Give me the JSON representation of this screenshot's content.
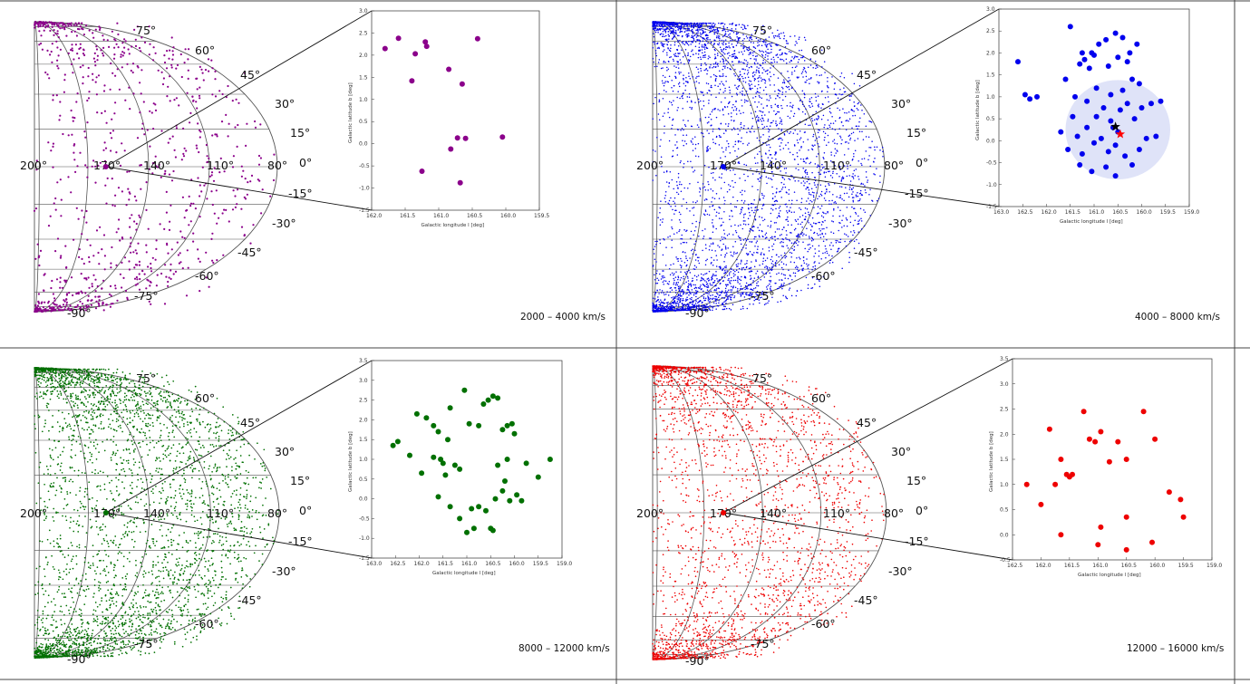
{
  "ticks": {
    "lat_labels": [
      "75°",
      "60°",
      "45°",
      "30°",
      "15°",
      "0°",
      "-15°",
      "-30°",
      "-45°",
      "-60°",
      "-75°",
      "-90°"
    ],
    "lon_labels": [
      "200°",
      "170°",
      "140°",
      "110°",
      "80°"
    ]
  },
  "panels": [
    {
      "velocity_label": "2000 – 4000 km/s",
      "color": "#8b008b",
      "inset_xlabel": "Galactic longitude l [deg]",
      "inset_ylabel": "Galactic latitude b [deg]",
      "chart_data": {
        "type": "scatter",
        "title": "",
        "xlabel": "Galactic longitude l [deg]",
        "ylabel": "Galactic latitude b [deg]",
        "xlim": [
          162.0,
          159.5
        ],
        "ylim": [
          -1.5,
          3.0
        ],
        "xticks": [
          "162.0",
          "161.5",
          "161.0",
          "160.5",
          "160.0",
          "159.5"
        ],
        "yticks": [
          "3.0",
          "2.5",
          "2.0",
          "1.5",
          "1.0",
          "0.5",
          "0.0",
          "-0.5",
          "-1.0",
          "-1.5"
        ],
        "points": [
          [
            161.8,
            2.15
          ],
          [
            161.6,
            2.38
          ],
          [
            161.4,
            1.42
          ],
          [
            161.35,
            2.03
          ],
          [
            161.2,
            2.3
          ],
          [
            161.18,
            2.2
          ],
          [
            160.85,
            1.68
          ],
          [
            160.65,
            1.35
          ],
          [
            160.42,
            2.37
          ],
          [
            161.25,
            -0.62
          ],
          [
            160.82,
            -0.12
          ],
          [
            160.72,
            0.13
          ],
          [
            160.6,
            0.12
          ],
          [
            160.05,
            0.15
          ],
          [
            160.68,
            -0.88
          ]
        ],
        "grid": false
      }
    },
    {
      "velocity_label": "4000 – 8000 km/s",
      "color": "#0000ee",
      "inset_xlabel": "Galactic longitude l [deg]",
      "inset_ylabel": "Galactic latitude b [deg]",
      "chart_data": {
        "type": "scatter",
        "title": "",
        "xlabel": "Galactic longitude l [deg]",
        "ylabel": "Galactic latitude b [deg]",
        "xlim": [
          163.0,
          159.0
        ],
        "ylim": [
          -1.5,
          3.0
        ],
        "xticks": [
          "163.0",
          "162.5",
          "162.0",
          "161.5",
          "161.0",
          "160.5",
          "160.0",
          "159.5",
          "159.0"
        ],
        "yticks": [
          "3.0",
          "2.5",
          "2.0",
          "1.5",
          "1.0",
          "0.5",
          "0.0",
          "-0.5",
          "-1.0",
          "-1.5"
        ],
        "highlight_circle": {
          "center": [
            160.5,
            0.25
          ],
          "radius_deg": 1.1
        },
        "markers": [
          {
            "symbol": "star",
            "color": "#000000",
            "at": [
              160.55,
              0.32
            ]
          },
          {
            "symbol": "star",
            "color": "#ff0000",
            "at": [
              160.45,
              0.15
            ]
          }
        ],
        "points": [
          [
            162.6,
            1.8
          ],
          [
            162.45,
            1.05
          ],
          [
            162.35,
            0.95
          ],
          [
            162.2,
            1.0
          ],
          [
            161.5,
            2.6
          ],
          [
            161.3,
            1.75
          ],
          [
            161.2,
            1.85
          ],
          [
            161.1,
            1.65
          ],
          [
            161.0,
            1.95
          ],
          [
            160.9,
            2.2
          ],
          [
            160.75,
            2.3
          ],
          [
            160.55,
            2.45
          ],
          [
            160.4,
            2.35
          ],
          [
            160.25,
            2.0
          ],
          [
            160.1,
            2.2
          ],
          [
            161.25,
            2.0
          ],
          [
            161.05,
            2.0
          ],
          [
            160.7,
            1.7
          ],
          [
            160.5,
            1.9
          ],
          [
            160.3,
            1.8
          ],
          [
            160.2,
            1.4
          ],
          [
            160.05,
            1.3
          ],
          [
            161.6,
            1.4
          ],
          [
            161.4,
            1.0
          ],
          [
            161.15,
            0.9
          ],
          [
            160.95,
            0.55
          ],
          [
            160.8,
            0.75
          ],
          [
            160.65,
            0.45
          ],
          [
            160.45,
            0.7
          ],
          [
            160.3,
            0.85
          ],
          [
            160.15,
            0.5
          ],
          [
            160.0,
            0.75
          ],
          [
            159.8,
            0.85
          ],
          [
            159.6,
            0.9
          ],
          [
            161.7,
            0.2
          ],
          [
            161.55,
            -0.2
          ],
          [
            161.35,
            0.1
          ],
          [
            161.15,
            0.3
          ],
          [
            161.0,
            -0.05
          ],
          [
            160.85,
            0.05
          ],
          [
            160.7,
            -0.25
          ],
          [
            160.55,
            -0.1
          ],
          [
            160.35,
            -0.35
          ],
          [
            160.2,
            -0.55
          ],
          [
            160.05,
            -0.2
          ],
          [
            161.3,
            -0.55
          ],
          [
            161.05,
            -0.7
          ],
          [
            160.75,
            -0.6
          ],
          [
            160.55,
            -0.8
          ],
          [
            159.9,
            0.05
          ],
          [
            159.7,
            0.1
          ],
          [
            160.95,
            1.2
          ],
          [
            160.65,
            1.05
          ],
          [
            160.4,
            1.15
          ],
          [
            161.45,
            0.55
          ],
          [
            161.25,
            -0.3
          ],
          [
            160.6,
            0.3
          ],
          [
            160.5,
            0.2
          ]
        ],
        "grid": false
      }
    },
    {
      "velocity_label": "8000 – 12000 km/s",
      "color": "#007000",
      "inset_xlabel": "Galactic longitude l [deg]",
      "inset_ylabel": "Galactic latitude b [deg]",
      "chart_data": {
        "type": "scatter",
        "title": "",
        "xlabel": "Galactic longitude l [deg]",
        "ylabel": "Galactic latitude b [deg]",
        "xlim": [
          163.0,
          159.0
        ],
        "ylim": [
          -1.5,
          3.5
        ],
        "xticks": [
          "163.0",
          "162.5",
          "162.0",
          "161.5",
          "161.0",
          "160.5",
          "160.0",
          "159.5",
          "159.0"
        ],
        "yticks": [
          "3.5",
          "3.0",
          "2.5",
          "2.0",
          "1.5",
          "1.0",
          "0.5",
          "0.0",
          "-0.5",
          "-1.0",
          "-1.5"
        ],
        "points": [
          [
            162.55,
            1.35
          ],
          [
            162.45,
            1.45
          ],
          [
            162.2,
            1.1
          ],
          [
            162.05,
            2.15
          ],
          [
            161.95,
            0.65
          ],
          [
            161.85,
            2.05
          ],
          [
            161.7,
            1.85
          ],
          [
            161.6,
            1.7
          ],
          [
            161.55,
            1.0
          ],
          [
            161.5,
            0.9
          ],
          [
            161.45,
            0.6
          ],
          [
            161.4,
            1.5
          ],
          [
            161.35,
            2.3
          ],
          [
            161.25,
            0.85
          ],
          [
            161.15,
            0.75
          ],
          [
            161.05,
            2.75
          ],
          [
            160.95,
            1.9
          ],
          [
            160.75,
            1.85
          ],
          [
            160.65,
            2.4
          ],
          [
            160.55,
            2.5
          ],
          [
            160.45,
            2.6
          ],
          [
            160.35,
            2.55
          ],
          [
            160.25,
            1.75
          ],
          [
            160.15,
            1.85
          ],
          [
            160.05,
            1.9
          ],
          [
            160.0,
            1.65
          ],
          [
            159.75,
            0.9
          ],
          [
            159.5,
            0.55
          ],
          [
            159.25,
            1.0
          ],
          [
            161.35,
            -0.2
          ],
          [
            161.15,
            -0.5
          ],
          [
            161.0,
            -0.85
          ],
          [
            160.85,
            -0.75
          ],
          [
            160.75,
            -0.2
          ],
          [
            160.6,
            -0.3
          ],
          [
            160.5,
            -0.75
          ],
          [
            160.4,
            0.0
          ],
          [
            160.25,
            0.2
          ],
          [
            160.2,
            0.45
          ],
          [
            160.1,
            -0.05
          ],
          [
            159.95,
            0.1
          ],
          [
            159.85,
            -0.05
          ],
          [
            160.35,
            0.85
          ],
          [
            160.15,
            1.0
          ],
          [
            161.6,
            0.05
          ],
          [
            161.7,
            1.05
          ],
          [
            160.9,
            -0.25
          ],
          [
            160.45,
            -0.8
          ]
        ],
        "grid": false
      }
    },
    {
      "velocity_label": "12000 – 16000 km/s",
      "color": "#ee0000",
      "inset_xlabel": "Galactic longitude l [deg]",
      "inset_ylabel": "Galactic latitude b [deg]",
      "chart_data": {
        "type": "scatter",
        "title": "",
        "xlabel": "Galactic longitude l [deg]",
        "ylabel": "Galactic latitude b [deg]",
        "xlim": [
          162.5,
          159.0
        ],
        "ylim": [
          -0.5,
          3.5
        ],
        "xticks": [
          "162.5",
          "162.0",
          "161.5",
          "161.0",
          "160.5",
          "160.0",
          "159.5",
          "159.0"
        ],
        "yticks": [
          "3.5",
          "3.0",
          "2.5",
          "2.0",
          "1.5",
          "1.0",
          "0.5",
          "0.0",
          "-0.5"
        ],
        "points": [
          [
            162.25,
            1.0
          ],
          [
            162.0,
            0.6
          ],
          [
            161.85,
            2.1
          ],
          [
            161.75,
            1.0
          ],
          [
            161.65,
            1.5
          ],
          [
            161.55,
            1.2
          ],
          [
            161.5,
            1.15
          ],
          [
            161.45,
            1.2
          ],
          [
            161.25,
            2.45
          ],
          [
            161.15,
            1.9
          ],
          [
            161.05,
            1.85
          ],
          [
            160.95,
            2.05
          ],
          [
            160.8,
            1.45
          ],
          [
            160.65,
            1.85
          ],
          [
            160.5,
            1.5
          ],
          [
            160.2,
            2.45
          ],
          [
            160.0,
            1.9
          ],
          [
            159.75,
            0.85
          ],
          [
            159.55,
            0.7
          ],
          [
            159.5,
            0.35
          ],
          [
            161.65,
            0.0
          ],
          [
            160.95,
            0.15
          ],
          [
            160.5,
            0.35
          ],
          [
            160.5,
            -0.3
          ],
          [
            160.05,
            -0.15
          ],
          [
            161.0,
            -0.2
          ]
        ],
        "grid": false
      }
    }
  ]
}
